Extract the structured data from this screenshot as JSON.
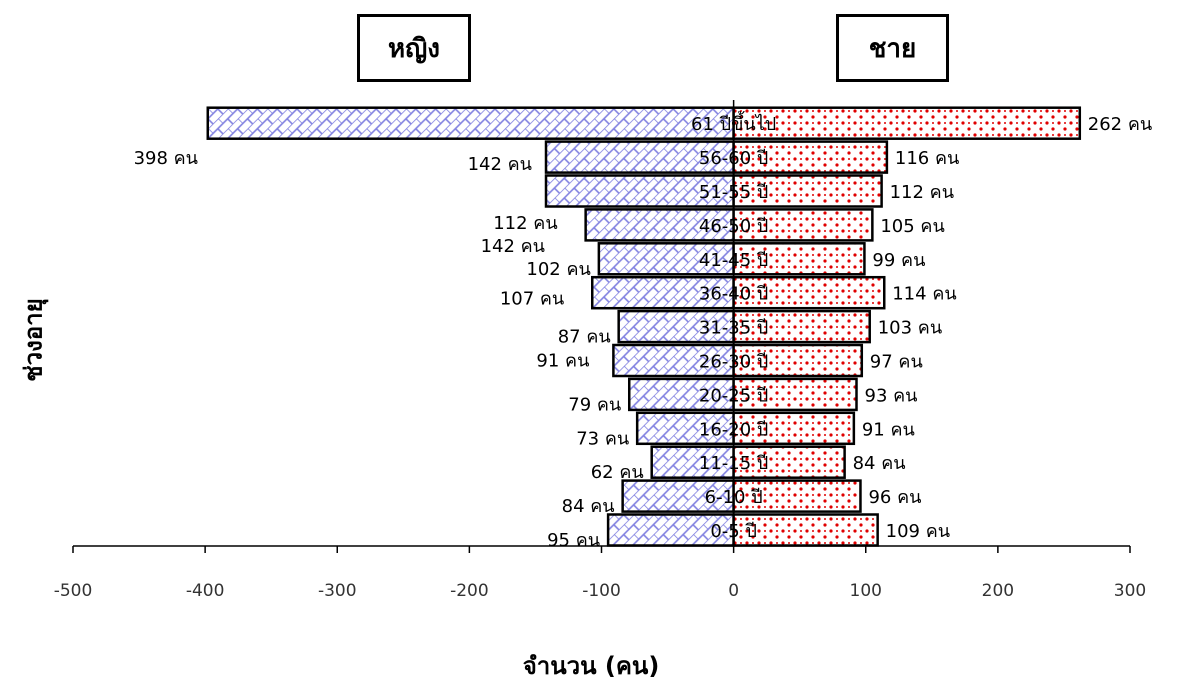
{
  "chart_data": {
    "type": "bar",
    "orientation": "horizontal",
    "layout": "population-pyramid",
    "categories": [
      "0-5 ปี",
      "6-10 ปี",
      "11-15 ปี",
      "16-20 ปี",
      "20-25 ปี",
      "26-30 ปี",
      "31-35 ปี",
      "36-40 ปี",
      "41-45 ปี",
      "46-50 ปี",
      "51-55 ปี",
      "56-60 ปี",
      "61 ปีขึ้นไป"
    ],
    "series": [
      {
        "name": "หญิง",
        "values": [
          -95,
          -84,
          -62,
          -73,
          -79,
          -91,
          -87,
          -107,
          -102,
          -112,
          -142,
          -142,
          -398
        ],
        "labels": [
          "95 คน",
          "84 คน",
          "62 คน",
          "73 คน",
          "79 คน",
          "91 คน",
          "87 คน",
          "107 คน",
          "102 คน",
          "112 คน",
          "142 คน",
          "142 คน",
          "398 คน"
        ],
        "color": "#ccccff",
        "pattern": "diagonal-brick"
      },
      {
        "name": "ชาย",
        "values": [
          109,
          96,
          84,
          91,
          93,
          97,
          103,
          114,
          99,
          105,
          112,
          116,
          262
        ],
        "labels": [
          "109 คน",
          "96 คน",
          "84 คน",
          "91 คน",
          "93 คน",
          "97 คน",
          "103 คน",
          "114 คน",
          "99 คน",
          "105 คน",
          "112 คน",
          "116 คน",
          "262 คน"
        ],
        "color": "#ff0000",
        "pattern": "dotted"
      }
    ],
    "xticks": [
      "-500",
      "-400",
      "-300",
      "-200",
      "-100",
      "0",
      "100",
      "200",
      "300"
    ],
    "xlim": [
      -500,
      300
    ],
    "xlabel": "จำนวน (คน)",
    "ylabel": "ช่วงอายุ",
    "grid": false,
    "legend_placement": "top"
  }
}
